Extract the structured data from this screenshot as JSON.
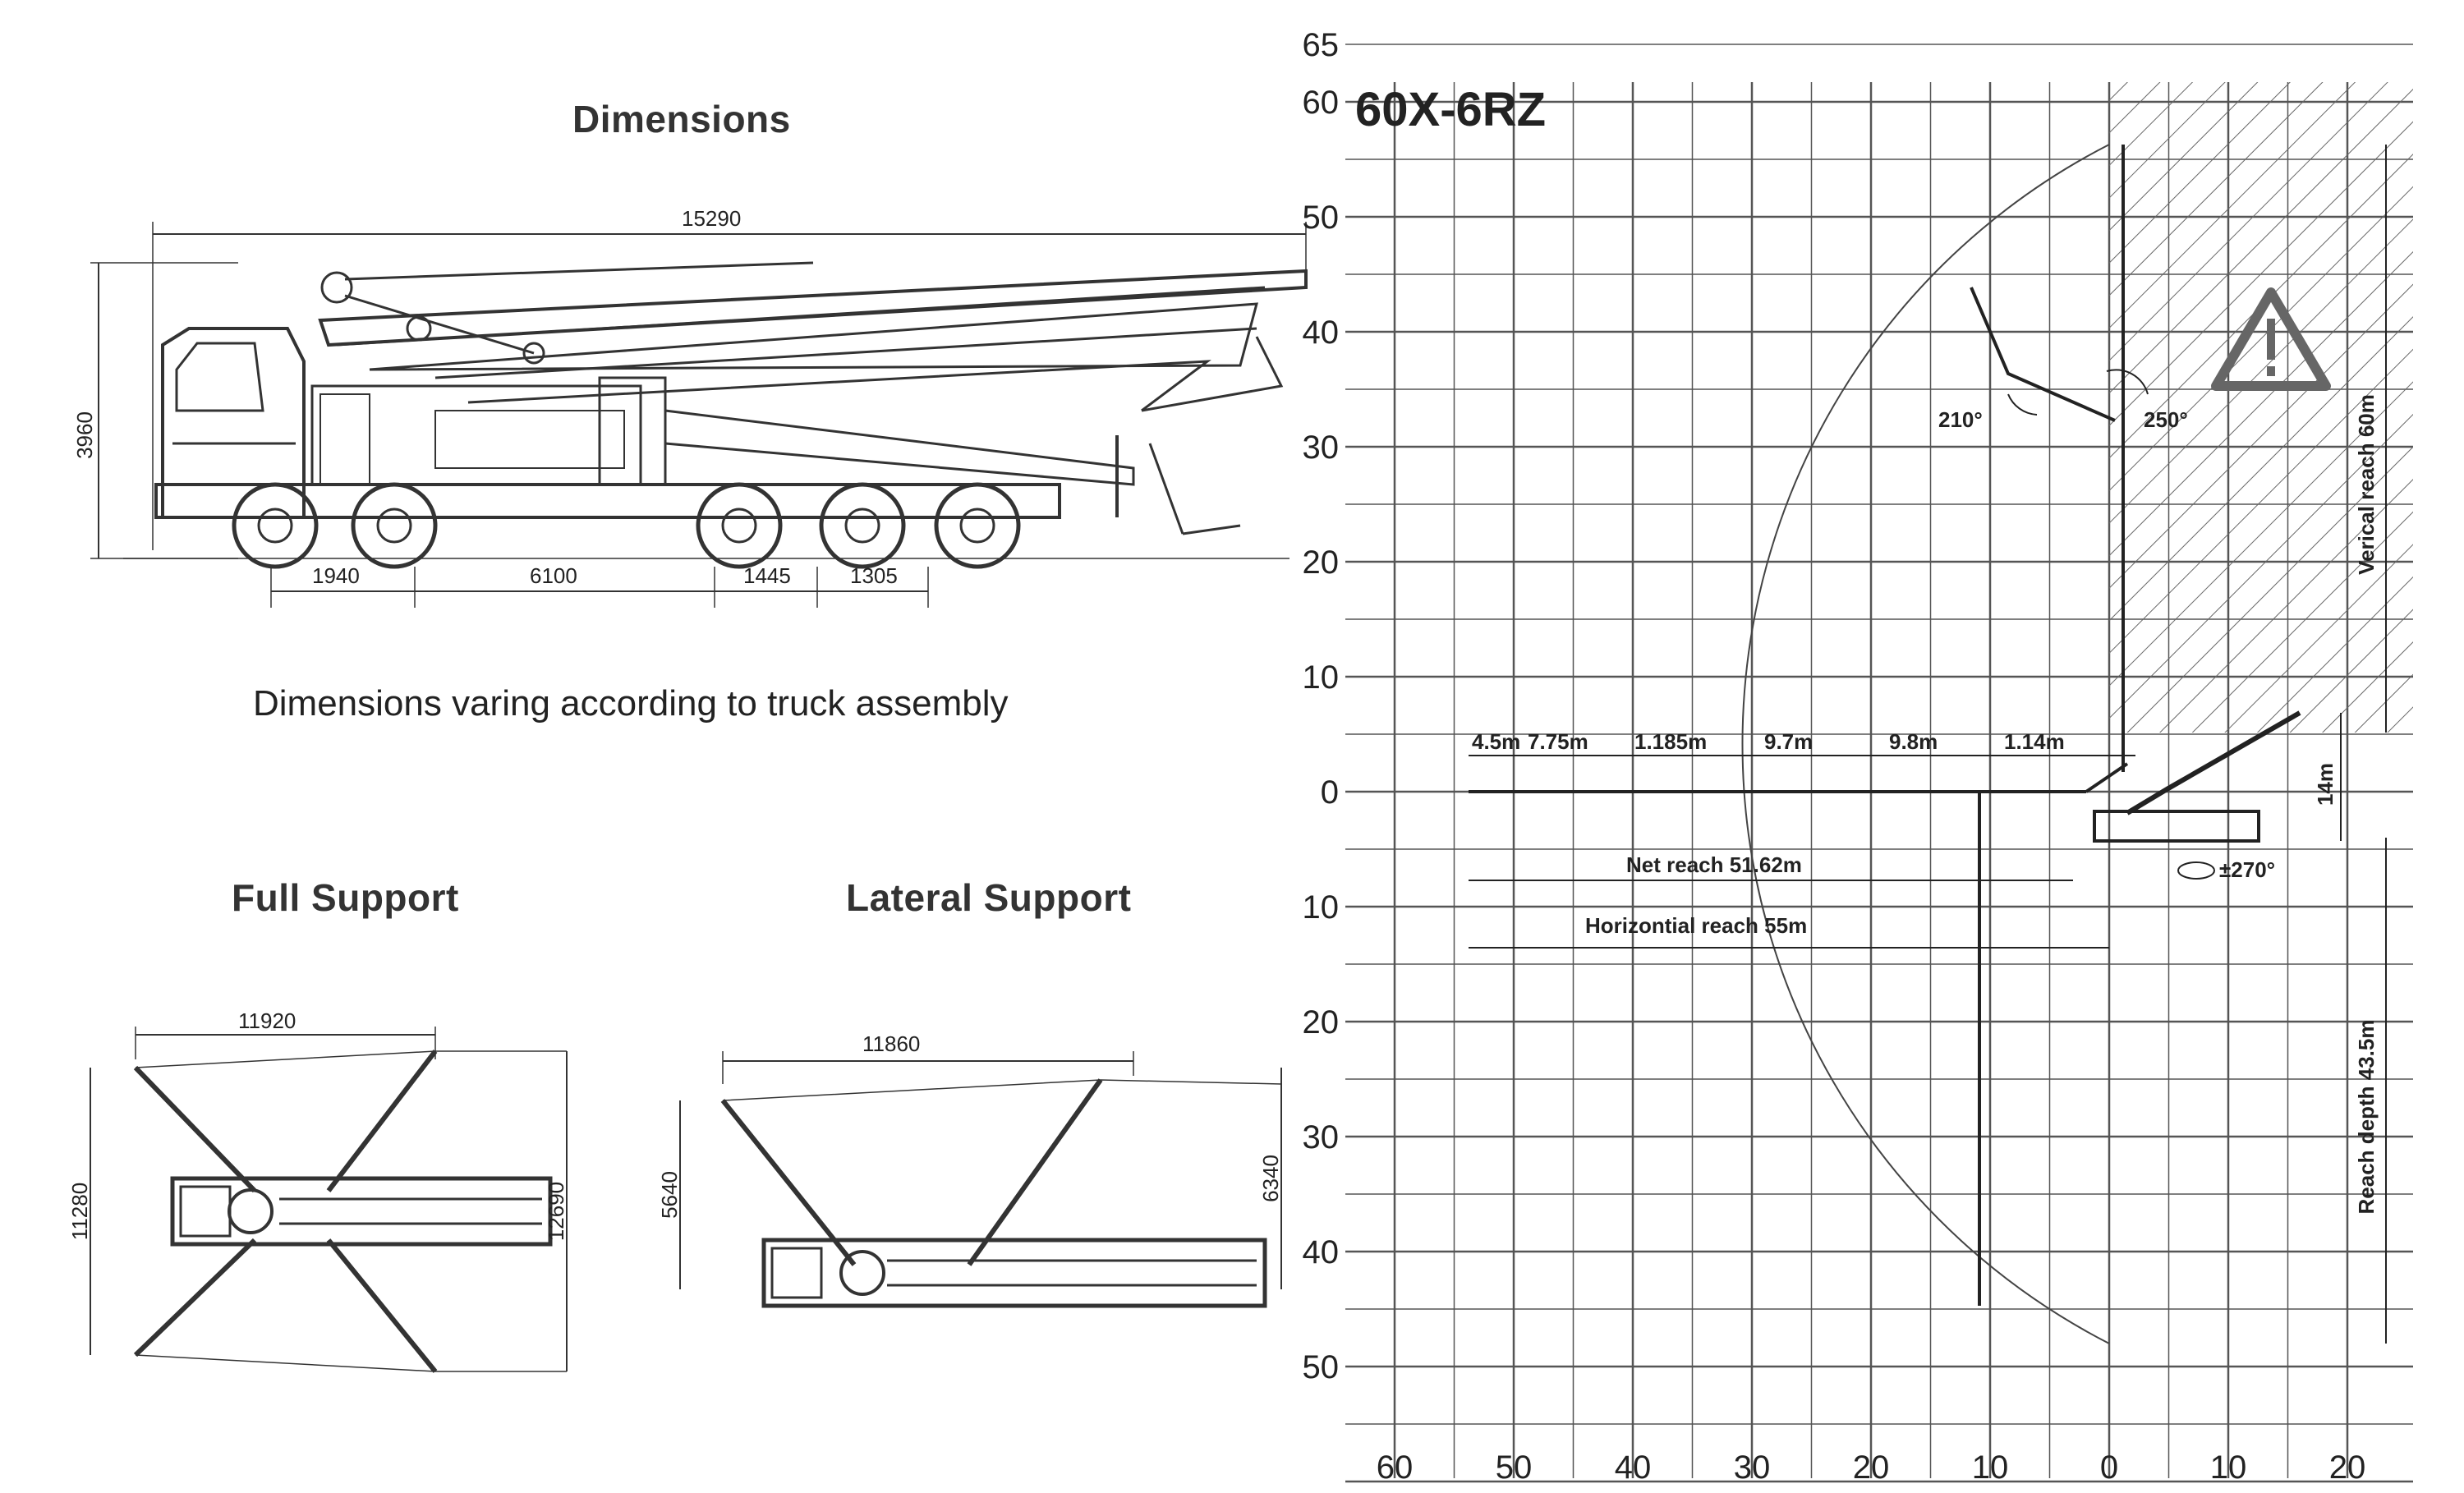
{
  "left_panel": {
    "title": "Dimensions",
    "overall_length": "15290",
    "overall_height": "3960",
    "axle_spacings": [
      "1940",
      "6100",
      "1445",
      "1305"
    ],
    "note": "Dimensions varing according to truck assembly",
    "full_support": {
      "title": "Full Support",
      "width": "11920",
      "depth_left": "11280",
      "depth_right": "12690"
    },
    "lateral_support": {
      "title": "Lateral Support",
      "width": "11860",
      "depth_left": "5640",
      "depth_right": "6340"
    }
  },
  "reach_diagram": {
    "model": "60X-6RZ",
    "y_ticks_above": [
      "65",
      "60",
      "50",
      "40",
      "30",
      "20",
      "10",
      "0"
    ],
    "y_ticks_below": [
      "10",
      "20",
      "30",
      "40",
      "50"
    ],
    "x_ticks": [
      "60",
      "50",
      "40",
      "30",
      "20",
      "10",
      "0",
      "10",
      "20"
    ],
    "section_lengths": [
      "4.5m",
      "7.75m",
      "1.185m",
      "9.7m",
      "9.8m",
      "1.14m"
    ],
    "angle_a": "210°",
    "angle_b": "250°",
    "slew": "±270°",
    "net_reach": "Net reach 51.62m",
    "horizontal_reach": "Horizontial reach 55m",
    "vertical_reach": "Verical reach 60m",
    "reach_depth": "Reach depth 43.5m",
    "unfold_height": "14m",
    "warning_icon": "warning-triangle-icon"
  }
}
